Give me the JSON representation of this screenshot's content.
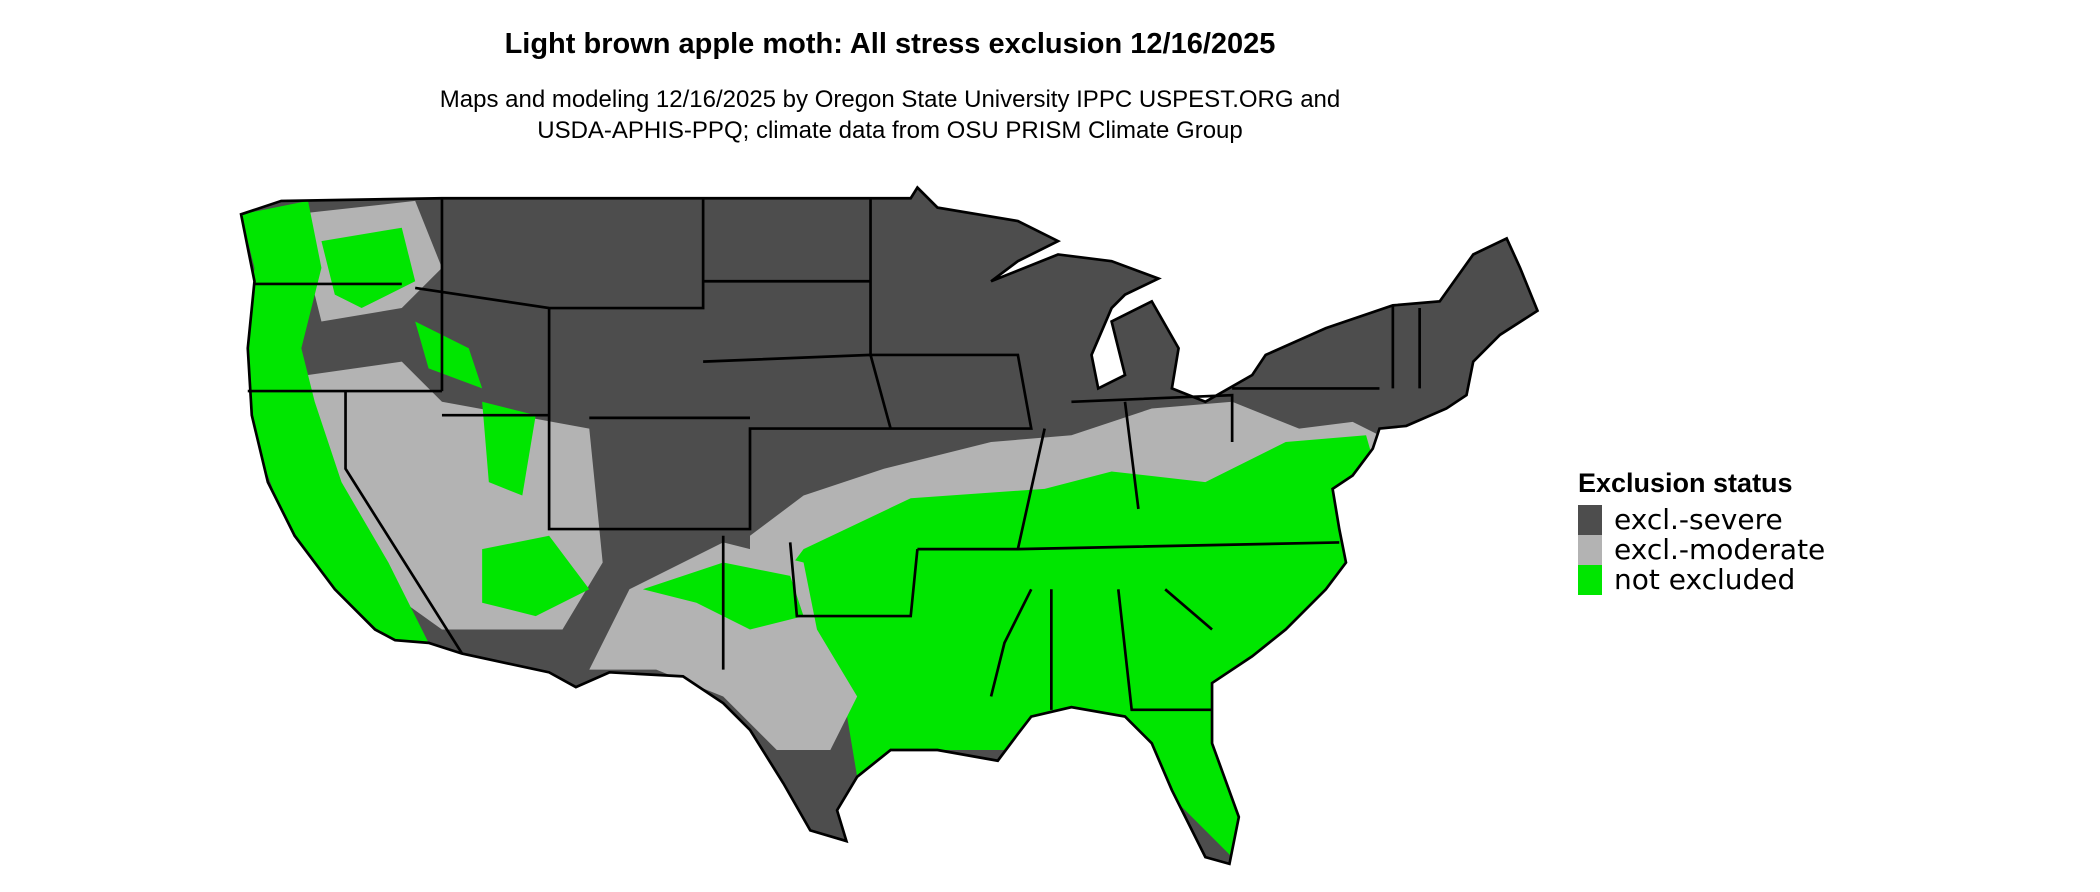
{
  "title": "Light brown apple moth: All stress exclusion 12/16/2025",
  "subtitle_line1": "Maps and modeling 12/16/2025 by Oregon State University IPPC USPEST.ORG and",
  "subtitle_line2": "USDA-APHIS-PPQ; climate data from OSU PRISM Climate Group",
  "legend": {
    "title": "Exclusion status",
    "placement": "right",
    "items": [
      {
        "label": "excl.-severe",
        "color": "#4d4d4d"
      },
      {
        "label": "excl.-moderate",
        "color": "#b3b3b3"
      },
      {
        "label": "not excluded",
        "color": "#00e600"
      }
    ]
  },
  "colors": {
    "border": "#000000",
    "background": "#ffffff"
  }
}
